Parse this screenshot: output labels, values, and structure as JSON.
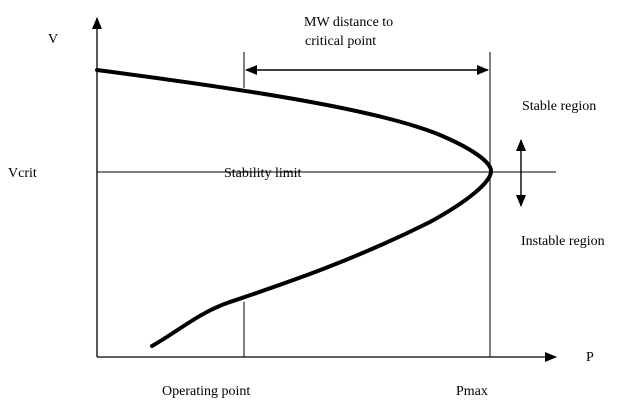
{
  "diagram": {
    "axes": {
      "y_label": "V",
      "x_label": "P"
    },
    "labels": {
      "vcrit": "Vcrit",
      "pmax": "Pmax",
      "operating_point": "Operating point",
      "stability_limit": "Stability limit",
      "mw_distance_line1": "MW distance to",
      "mw_distance_line2": "critical point",
      "stable_region": "Stable region",
      "instable_region": "Instable region"
    },
    "colors": {
      "line": "#000000",
      "background": "#ffffff"
    }
  }
}
